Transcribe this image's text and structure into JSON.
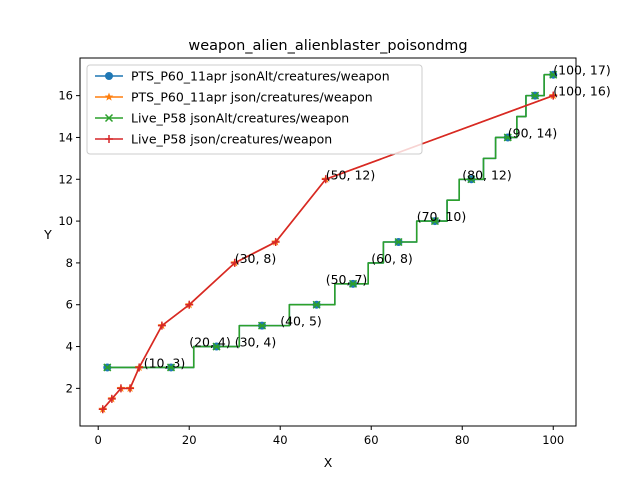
{
  "chart_data": {
    "type": "line",
    "title": "weapon_alien_alienblaster_poisondmg",
    "xlabel": "X",
    "ylabel": "Y",
    "xlim": [
      -4,
      105
    ],
    "ylim": [
      0.2,
      17.8
    ],
    "xticks": [
      0,
      20,
      40,
      60,
      80,
      100
    ],
    "yticks": [
      2,
      4,
      6,
      8,
      10,
      12,
      14,
      16
    ],
    "grid": false,
    "legend": "upper left",
    "series": [
      {
        "name": "PTS_P60_11apr jsonAlt/creatures/weapon",
        "color": "#1f77b4",
        "marker": "circle",
        "step": true,
        "x": [
          2,
          16,
          26,
          36,
          48,
          56,
          66,
          74,
          82,
          90,
          96,
          100
        ],
        "y": [
          3,
          3,
          4,
          5,
          6,
          7,
          9,
          10,
          12,
          14,
          16,
          17
        ]
      },
      {
        "name": "PTS_P60_11apr json/creatures/weapon",
        "color": "#ff7f0e",
        "marker": "star",
        "step": false,
        "x": [
          1,
          3,
          5,
          7,
          9,
          14,
          20,
          30,
          39,
          50,
          100
        ],
        "y": [
          1,
          1.5,
          2,
          2,
          3,
          5,
          6,
          8,
          9,
          12,
          16
        ]
      },
      {
        "name": "Live_P58 jsonAlt/creatures/weapon",
        "color": "#2ca02c",
        "marker": "x",
        "step": true,
        "x": [
          2,
          16,
          26,
          36,
          48,
          56,
          66,
          74,
          82,
          90,
          96,
          100
        ],
        "y": [
          3,
          3,
          4,
          5,
          6,
          7,
          9,
          10,
          12,
          14,
          16,
          17
        ]
      },
      {
        "name": "Live_P58 json/creatures/weapon",
        "color": "#d62728",
        "marker": "plus",
        "step": false,
        "x": [
          1,
          3,
          5,
          7,
          9,
          14,
          20,
          30,
          39,
          50,
          100
        ],
        "y": [
          1,
          1.5,
          2,
          2,
          3,
          5,
          6,
          8,
          9,
          12,
          16
        ]
      }
    ],
    "annotations": [
      {
        "x": 10,
        "y": 3,
        "text": "(10, 3)"
      },
      {
        "x": 20,
        "y": 4,
        "text": "(20, 4)"
      },
      {
        "x": 30,
        "y": 4,
        "text": "(30, 4)"
      },
      {
        "x": 30,
        "y": 8,
        "text": "(30, 8)"
      },
      {
        "x": 40,
        "y": 5,
        "text": "(40, 5)"
      },
      {
        "x": 50,
        "y": 7,
        "text": "(50, 7)"
      },
      {
        "x": 50,
        "y": 12,
        "text": "(50, 12)"
      },
      {
        "x": 60,
        "y": 8,
        "text": "(60, 8)"
      },
      {
        "x": 70,
        "y": 10,
        "text": "(70, 10)"
      },
      {
        "x": 80,
        "y": 12,
        "text": "(80, 12)"
      },
      {
        "x": 90,
        "y": 14,
        "text": "(90, 14)"
      },
      {
        "x": 100,
        "y": 16,
        "text": "(100, 16)"
      },
      {
        "x": 100,
        "y": 17,
        "text": "(100, 17)"
      }
    ]
  }
}
